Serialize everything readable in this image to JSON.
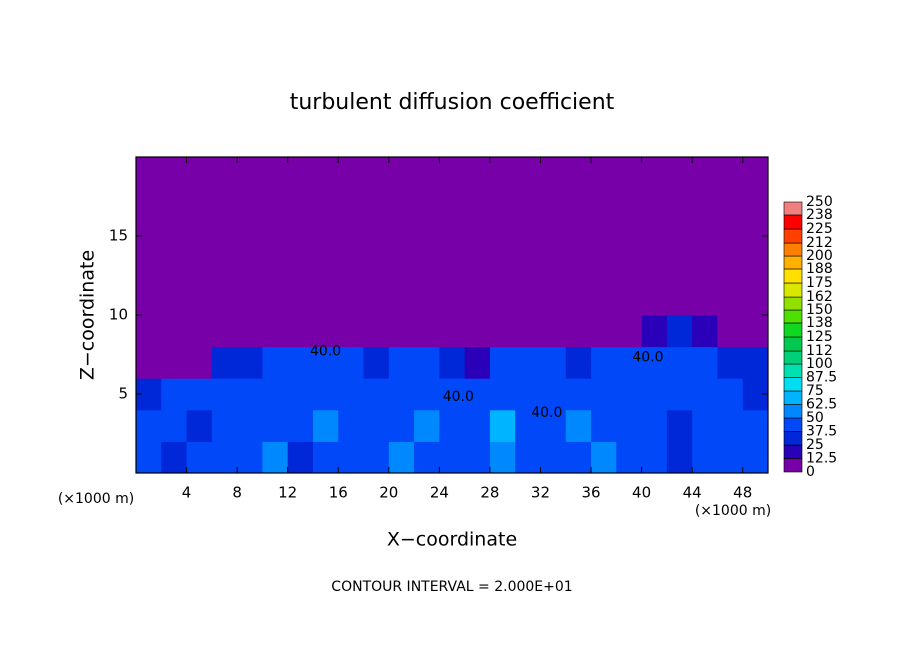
{
  "chart_data": {
    "type": "contour",
    "title": "turbulent diffusion coefficient",
    "x_label": "X−coordinate",
    "y_label": "Z−coordinate",
    "x_unit": "(×1000 m)",
    "y_unit": "(×1000 m)",
    "footer": "CONTOUR INTERVAL = 2.000E+01",
    "xlim": [
      0,
      50
    ],
    "ylim": [
      0,
      20
    ],
    "xticks": [
      4,
      8,
      12,
      16,
      20,
      24,
      28,
      32,
      36,
      40,
      44,
      48
    ],
    "yticks": [
      5,
      10,
      15
    ],
    "x": [
      1,
      3,
      5,
      7,
      9,
      11,
      13,
      15,
      17,
      19,
      21,
      23,
      25,
      27,
      29,
      31,
      33,
      35,
      37,
      39,
      41,
      43,
      45,
      47,
      49
    ],
    "y": [
      1,
      3,
      5,
      7,
      9,
      11,
      13,
      15,
      17,
      19
    ],
    "z": [
      [
        40,
        35,
        45,
        38,
        42,
        50,
        35,
        40,
        45,
        38,
        55,
        42,
        40,
        48,
        60,
        45,
        40,
        38,
        52,
        45,
        40,
        35,
        42,
        38,
        40
      ],
      [
        38,
        45,
        35,
        42,
        48,
        40,
        45,
        55,
        42,
        38,
        45,
        50,
        40,
        45,
        70,
        42,
        48,
        50,
        40,
        38,
        45,
        35,
        40,
        45,
        42
      ],
      [
        30,
        40,
        38,
        45,
        42,
        40,
        48,
        42,
        45,
        40,
        38,
        42,
        45,
        40,
        38,
        45,
        42,
        40,
        45,
        48,
        42,
        40,
        38,
        45,
        35
      ],
      [
        10,
        5,
        8,
        30,
        35,
        40,
        38,
        42,
        40,
        35,
        38,
        40,
        35,
        15,
        38,
        40,
        42,
        35,
        38,
        40,
        42,
        40,
        38,
        35,
        30
      ],
      [
        0,
        0,
        0,
        0,
        0,
        0,
        0,
        0,
        0,
        0,
        0,
        0,
        0,
        0,
        0,
        0,
        0,
        0,
        0,
        0,
        20,
        25,
        20,
        10,
        5
      ],
      [
        0,
        0,
        0,
        0,
        0,
        0,
        0,
        0,
        0,
        0,
        0,
        0,
        0,
        0,
        0,
        0,
        0,
        0,
        0,
        0,
        0,
        0,
        0,
        0,
        0
      ],
      [
        0,
        0,
        0,
        0,
        0,
        0,
        0,
        0,
        0,
        0,
        0,
        0,
        0,
        0,
        0,
        0,
        0,
        0,
        0,
        0,
        0,
        0,
        0,
        0,
        0
      ],
      [
        0,
        0,
        0,
        0,
        0,
        0,
        0,
        0,
        0,
        0,
        0,
        0,
        0,
        0,
        0,
        0,
        0,
        0,
        0,
        0,
        0,
        0,
        0,
        0,
        0
      ],
      [
        0,
        0,
        0,
        0,
        0,
        0,
        0,
        0,
        0,
        0,
        0,
        0,
        0,
        0,
        0,
        0,
        0,
        0,
        0,
        0,
        0,
        0,
        0,
        0,
        0
      ],
      [
        0,
        0,
        0,
        0,
        0,
        0,
        0,
        0,
        0,
        0,
        0,
        0,
        0,
        0,
        0,
        0,
        0,
        0,
        0,
        0,
        0,
        0,
        0,
        0,
        0
      ]
    ],
    "colorbar": {
      "levels": [
        0,
        12.5,
        25,
        37.5,
        50,
        62.5,
        75,
        87.5,
        100,
        112,
        125,
        138,
        150,
        162,
        175,
        188,
        200,
        212,
        225,
        238,
        250
      ],
      "colors": [
        "#7800a8",
        "#2a00b8",
        "#0028d8",
        "#0048f8",
        "#0088ff",
        "#00b4ff",
        "#00dcf0",
        "#00e0b0",
        "#00d078",
        "#00c850",
        "#10d820",
        "#50e000",
        "#90e000",
        "#d8e800",
        "#ffe000",
        "#ffb000",
        "#ff8000",
        "#ff4000",
        "#ff0000",
        "#f08080"
      ]
    },
    "annotations": [
      {
        "text": "40.0",
        "x": 15,
        "y": 7.7
      },
      {
        "text": "40.0",
        "x": 40.5,
        "y": 7.3
      },
      {
        "text": "40.0",
        "x": 25.5,
        "y": 4.8
      },
      {
        "text": "40.0",
        "x": 32.5,
        "y": 3.8
      }
    ]
  }
}
